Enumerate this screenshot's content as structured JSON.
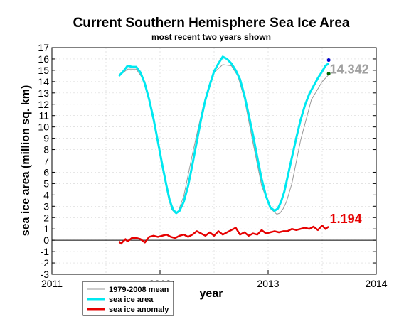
{
  "chart_data": {
    "type": "line",
    "title": "Current Southern Hemisphere Sea Ice Area",
    "subtitle": "most recent two years shown",
    "xlabel": "year",
    "ylabel": "sea ice area (million sq. km)",
    "xlim": [
      2011,
      2014
    ],
    "ylim": [
      -3,
      17
    ],
    "x_ticks": [
      "2011",
      "2012",
      "2013",
      "2014"
    ],
    "y_ticks": [
      -3,
      -2,
      -1,
      0,
      1,
      2,
      3,
      4,
      5,
      6,
      7,
      8,
      9,
      10,
      11,
      12,
      13,
      14,
      15,
      16,
      17
    ],
    "grid": true,
    "legend_position": "bottom-left",
    "legend": [
      "1979-2008 mean",
      "sea ice area",
      "sea ice anomaly"
    ],
    "series": [
      {
        "name": "1979-2008 mean",
        "color": "#999999",
        "x": [
          2011.62,
          2011.7,
          2011.78,
          2011.86,
          2011.94,
          2012.02,
          2012.08,
          2012.11,
          2012.14,
          2012.17,
          2012.22,
          2012.3,
          2012.4,
          2012.5,
          2012.58,
          2012.66,
          2012.72,
          2012.78,
          2012.86,
          2012.94,
          2013.02,
          2013.08,
          2013.11,
          2013.14,
          2013.17,
          2013.22,
          2013.3,
          2013.4,
          2013.5,
          2013.56
        ],
        "y": [
          14.5,
          15.1,
          15.1,
          14.0,
          10.8,
          6.5,
          3.6,
          2.7,
          2.4,
          2.6,
          3.9,
          7.6,
          11.9,
          14.8,
          15.5,
          15.4,
          14.5,
          12.5,
          8.6,
          4.8,
          2.8,
          2.3,
          2.4,
          2.8,
          3.4,
          5.0,
          8.8,
          12.4,
          14.0,
          14.6
        ]
      },
      {
        "name": "sea ice area",
        "color": "#00e8f0",
        "x": [
          2011.62,
          2011.66,
          2011.7,
          2011.74,
          2011.78,
          2011.82,
          2011.86,
          2011.9,
          2011.94,
          2011.98,
          2012.02,
          2012.06,
          2012.09,
          2012.12,
          2012.15,
          2012.18,
          2012.22,
          2012.26,
          2012.3,
          2012.34,
          2012.38,
          2012.42,
          2012.46,
          2012.5,
          2012.54,
          2012.58,
          2012.62,
          2012.66,
          2012.7,
          2012.74,
          2012.78,
          2012.82,
          2012.86,
          2012.9,
          2012.94,
          2012.98,
          2013.02,
          2013.06,
          2013.09,
          2013.12,
          2013.15,
          2013.18,
          2013.22,
          2013.26,
          2013.3,
          2013.34,
          2013.38,
          2013.42,
          2013.46,
          2013.5,
          2013.53,
          2013.56
        ],
        "y": [
          14.5,
          14.9,
          15.4,
          15.3,
          15.3,
          14.8,
          13.8,
          12.4,
          10.7,
          8.7,
          6.7,
          4.8,
          3.5,
          2.7,
          2.4,
          2.6,
          3.4,
          4.8,
          6.7,
          8.7,
          10.7,
          12.4,
          13.7,
          14.9,
          15.6,
          16.2,
          16.0,
          15.6,
          15.0,
          14.2,
          12.8,
          11.1,
          9.3,
          7.3,
          5.4,
          3.9,
          2.9,
          2.6,
          2.8,
          3.4,
          4.3,
          5.6,
          7.3,
          9.0,
          10.6,
          11.9,
          12.9,
          13.6,
          14.3,
          14.9,
          15.4,
          15.6
        ]
      },
      {
        "name": "sea ice anomaly",
        "color": "#e60000",
        "x": [
          2011.62,
          2011.64,
          2011.66,
          2011.68,
          2011.7,
          2011.74,
          2011.78,
          2011.82,
          2011.86,
          2011.9,
          2011.94,
          2011.98,
          2012.02,
          2012.06,
          2012.1,
          2012.14,
          2012.18,
          2012.22,
          2012.26,
          2012.3,
          2012.34,
          2012.38,
          2012.42,
          2012.46,
          2012.5,
          2012.54,
          2012.58,
          2012.62,
          2012.66,
          2012.7,
          2012.74,
          2012.78,
          2012.82,
          2012.86,
          2012.9,
          2012.94,
          2012.98,
          2013.02,
          2013.06,
          2013.1,
          2013.14,
          2013.18,
          2013.22,
          2013.26,
          2013.3,
          2013.34,
          2013.38,
          2013.42,
          2013.46,
          2013.5,
          2013.53,
          2013.56
        ],
        "y": [
          -0.1,
          -0.3,
          -0.1,
          0.1,
          -0.1,
          0.2,
          0.2,
          0.1,
          -0.2,
          0.3,
          0.4,
          0.3,
          0.4,
          0.5,
          0.3,
          0.2,
          0.4,
          0.5,
          0.3,
          0.5,
          0.8,
          0.6,
          0.4,
          0.7,
          0.4,
          0.8,
          0.5,
          0.7,
          0.9,
          1.1,
          0.5,
          0.7,
          0.4,
          0.6,
          0.5,
          0.9,
          0.6,
          0.7,
          0.8,
          0.7,
          0.8,
          0.8,
          1.0,
          0.9,
          1.0,
          1.1,
          1.0,
          1.2,
          0.9,
          1.3,
          1.0,
          1.2
        ]
      }
    ],
    "markers": [
      {
        "name": "latest-area-marker",
        "x": 2013.56,
        "y": 15.9,
        "color": "#0000cc"
      },
      {
        "name": "latest-mean-marker",
        "x": 2013.56,
        "y": 14.7,
        "color": "#006600"
      }
    ],
    "annotations": [
      {
        "text": "14.342",
        "x": 2013.57,
        "y": 14.7,
        "color": "#a0a0a0"
      },
      {
        "text": "1.194",
        "x": 2013.57,
        "y": 1.5,
        "color": "#e60000"
      }
    ]
  }
}
